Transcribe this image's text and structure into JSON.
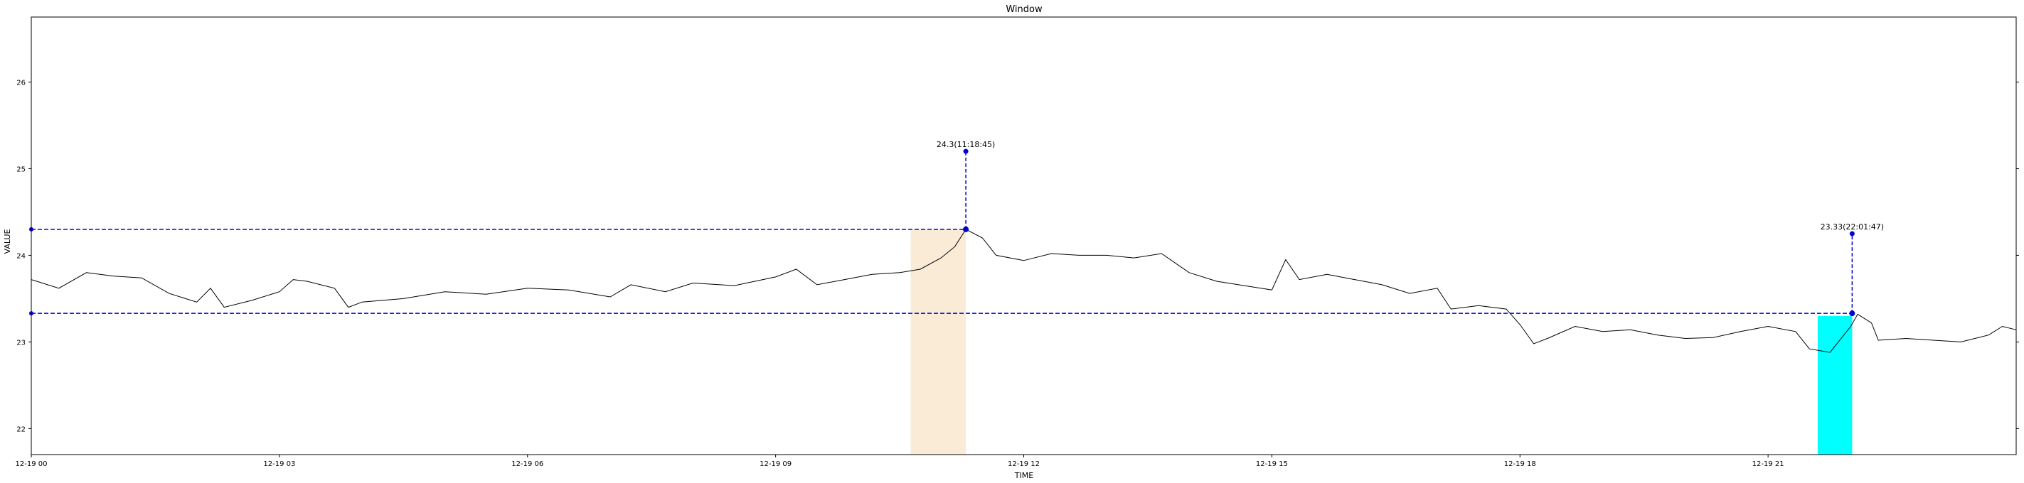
{
  "chart_data": {
    "type": "line",
    "title": "Window",
    "xlabel": "TIME",
    "ylabel": "VALUE",
    "xlim": [
      "12-19 00:00",
      "12-20 00:00"
    ],
    "ylim": [
      21.7,
      26.75
    ],
    "x_ticks": [
      "12-19 00",
      "12-19 03",
      "12-19 06",
      "12-19 09",
      "12-19 12",
      "12-19 15",
      "12-19 18",
      "12-19 21"
    ],
    "y_ticks": [
      22,
      23,
      24,
      25,
      26
    ],
    "grid": false,
    "series": [
      {
        "color": "#000000",
        "points": [
          [
            "12-19 00:00",
            23.72
          ],
          [
            "12-19 00:20",
            23.62
          ],
          [
            "12-19 00:40",
            23.8
          ],
          [
            "12-19 01:00",
            23.76
          ],
          [
            "12-19 01:20",
            23.74
          ],
          [
            "12-19 01:40",
            23.56
          ],
          [
            "12-19 02:00",
            23.46
          ],
          [
            "12-19 02:10",
            23.62
          ],
          [
            "12-19 02:20",
            23.4
          ],
          [
            "12-19 02:40",
            23.48
          ],
          [
            "12-19 03:00",
            23.58
          ],
          [
            "12-19 03:10",
            23.72
          ],
          [
            "12-19 03:20",
            23.7
          ],
          [
            "12-19 03:40",
            23.62
          ],
          [
            "12-19 03:50",
            23.4
          ],
          [
            "12-19 04:00",
            23.46
          ],
          [
            "12-19 04:30",
            23.5
          ],
          [
            "12-19 05:00",
            23.58
          ],
          [
            "12-19 05:30",
            23.55
          ],
          [
            "12-19 06:00",
            23.62
          ],
          [
            "12-19 06:30",
            23.6
          ],
          [
            "12-19 07:00",
            23.52
          ],
          [
            "12-19 07:15",
            23.66
          ],
          [
            "12-19 07:40",
            23.58
          ],
          [
            "12-19 08:00",
            23.68
          ],
          [
            "12-19 08:30",
            23.65
          ],
          [
            "12-19 09:00",
            23.75
          ],
          [
            "12-19 09:15",
            23.84
          ],
          [
            "12-19 09:30",
            23.66
          ],
          [
            "12-19 09:50",
            23.72
          ],
          [
            "12-19 10:10",
            23.78
          ],
          [
            "12-19 10:30",
            23.8
          ],
          [
            "12-19 10:45",
            23.84
          ],
          [
            "12-19 11:00",
            23.97
          ],
          [
            "12-19 11:10",
            24.1
          ],
          [
            "12-19 11:18",
            24.3
          ],
          [
            "12-19 11:30",
            24.2
          ],
          [
            "12-19 11:40",
            24.0
          ],
          [
            "12-19 12:00",
            23.94
          ],
          [
            "12-19 12:20",
            24.02
          ],
          [
            "12-19 12:40",
            24.0
          ],
          [
            "12-19 13:00",
            24.0
          ],
          [
            "12-19 13:20",
            23.97
          ],
          [
            "12-19 13:40",
            24.02
          ],
          [
            "12-19 14:00",
            23.8
          ],
          [
            "12-19 14:20",
            23.7
          ],
          [
            "12-19 14:40",
            23.65
          ],
          [
            "12-19 15:00",
            23.6
          ],
          [
            "12-19 15:10",
            23.95
          ],
          [
            "12-19 15:20",
            23.72
          ],
          [
            "12-19 15:40",
            23.78
          ],
          [
            "12-19 16:00",
            23.72
          ],
          [
            "12-19 16:20",
            23.66
          ],
          [
            "12-19 16:40",
            23.56
          ],
          [
            "12-19 17:00",
            23.62
          ],
          [
            "12-19 17:10",
            23.38
          ],
          [
            "12-19 17:30",
            23.42
          ],
          [
            "12-19 17:50",
            23.38
          ],
          [
            "12-19 18:00",
            23.2
          ],
          [
            "12-19 18:10",
            22.98
          ],
          [
            "12-19 18:20",
            23.04
          ],
          [
            "12-19 18:40",
            23.18
          ],
          [
            "12-19 19:00",
            23.12
          ],
          [
            "12-19 19:20",
            23.14
          ],
          [
            "12-19 19:40",
            23.08
          ],
          [
            "12-19 20:00",
            23.04
          ],
          [
            "12-19 20:20",
            23.05
          ],
          [
            "12-19 20:40",
            23.12
          ],
          [
            "12-19 21:00",
            23.18
          ],
          [
            "12-19 21:20",
            23.12
          ],
          [
            "12-19 21:30",
            22.92
          ],
          [
            "12-19 21:45",
            22.88
          ],
          [
            "12-19 22:00",
            23.18
          ],
          [
            "12-19 22:05",
            23.32
          ],
          [
            "12-19 22:15",
            23.22
          ],
          [
            "12-19 22:20",
            23.02
          ],
          [
            "12-19 22:40",
            23.04
          ],
          [
            "12-19 23:00",
            23.02
          ],
          [
            "12-19 23:20",
            23.0
          ],
          [
            "12-19 23:40",
            23.08
          ],
          [
            "12-19 23:50",
            23.18
          ],
          [
            "12-20 00:00",
            23.14
          ]
        ]
      }
    ],
    "h_lines": [
      {
        "y": 24.3,
        "x_start": "12-19 00:00",
        "x_end": "12-19 11:18",
        "color": "#0000cc",
        "style": "dashed"
      },
      {
        "y": 23.33,
        "x_start": "12-19 00:00",
        "x_end": "12-19 22:01",
        "color": "#0000cc",
        "style": "dashed"
      }
    ],
    "shaded_spans": [
      {
        "x_start": "12-19 10:38",
        "x_end": "12-19 11:18",
        "y_top": 24.3,
        "color": "#faebd7"
      },
      {
        "x_start": "12-19 21:36",
        "x_end": "12-19 22:01",
        "y_top": 23.3,
        "color": "#00ffff"
      }
    ],
    "annotations": [
      {
        "text": "24.3(11:18:45)",
        "x": "12-19 11:18",
        "y": 24.3,
        "marker_y": 25.2,
        "color": "#0000cc"
      },
      {
        "text": "23.33(22:01:47)",
        "x": "12-19 22:01",
        "y": 23.33,
        "marker_y": 24.25,
        "color": "#0000cc"
      }
    ]
  }
}
